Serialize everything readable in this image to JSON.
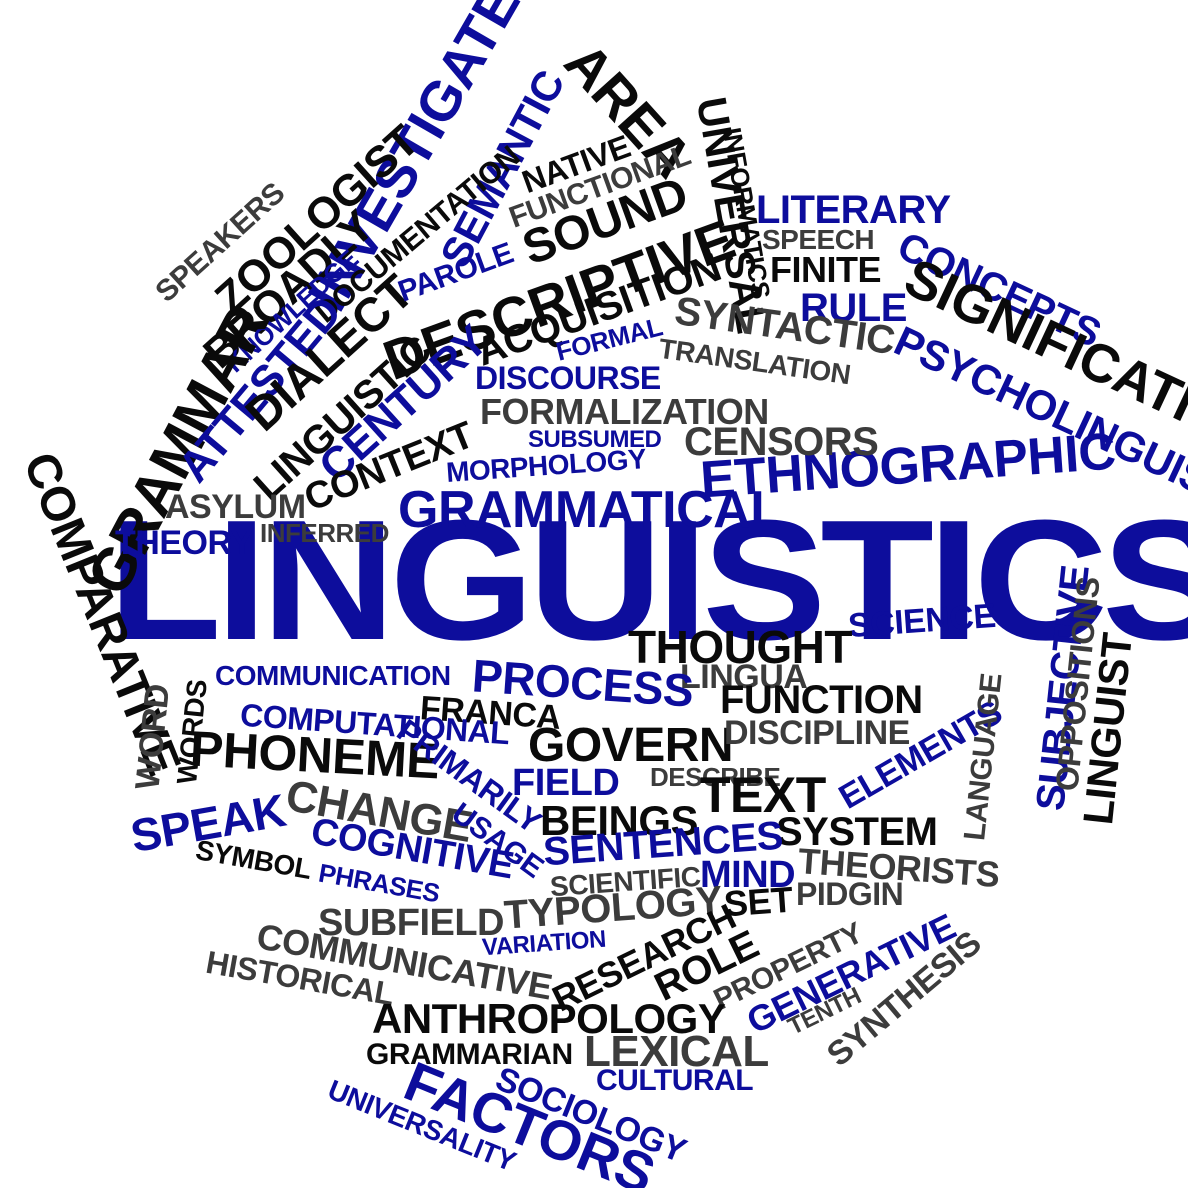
{
  "palette": {
    "black": "#0a0a0a",
    "blue": "#0d0d9c",
    "gray": "#3c3c3c",
    "background": "#ffffff"
  },
  "words": {
    "linguistics": "LINGUISTICS",
    "grammatical": "GRAMMATICAL",
    "ethnographic": "ETHNOGRAPHIC",
    "descriptive": "DESCRIPTIVE",
    "investigate": "INVESTIGATE",
    "semantic": "SEMANTIC",
    "area": "AREA",
    "zoologist": "ZOOLOGIST",
    "speakers": "SPEAKERS",
    "broadly": "BROADLY",
    "knowledge": "KNOWLEDGE",
    "documentation": "DOCUMENTATION",
    "grammar": "GRAMMAR",
    "attested": "ATTESTED",
    "dialect": "DIALECT",
    "linguistic": "LINGUISTIC",
    "century": "CENTURY",
    "parole": "PAROLE",
    "native": "NATIVE",
    "functional": "FUNCTIONAL",
    "sound": "SOUND",
    "acquisition": "ACQUISITION",
    "universal": "UNIVERSAL",
    "informatics": "INFORMATICS",
    "literary": "LITERARY",
    "speech": "SPEECH",
    "finite": "FINITE",
    "concepts": "CONCEPTS",
    "signification": "SIGNIFICATION",
    "rule": "RULE",
    "psycholinguist": "PSYCHOLINGUIST",
    "syntactic": "SYNTACTIC",
    "formal": "FORMAL",
    "translation": "TRANSLATION",
    "discourse": "DISCOURSE",
    "formalization": "FORMALIZATION",
    "subsumed": "SUBSUMED",
    "censors": "CENSORS",
    "context": "CONTEXT",
    "morphology": "MORPHOLOGY",
    "asylum": "ASYLUM",
    "theory": "THEORY",
    "inferred": "INFERRED",
    "comparative": "COMPARATIVE",
    "science": "SCIENCE",
    "thought": "THOUGHT",
    "lingua": "LINGUA",
    "communication": "COMMUNICATION",
    "process": "PROCESS",
    "franca": "FRANCA",
    "function": "FUNCTION",
    "computational": "COMPUTATIONAL",
    "govern": "GOVERN",
    "discipline": "DISCIPLINE",
    "word": "WORD",
    "words": "WORDS",
    "phoneme": "PHONEME",
    "primarily": "PRIMARILY",
    "field": "FIELD",
    "describe": "DESCRIBE",
    "elements": "ELEMENTS",
    "speak": "SPEAK",
    "change": "CHANGE",
    "usage": "USAGE",
    "beings": "BEINGS",
    "text": "TEXT",
    "system": "SYSTEM",
    "cognitive": "COGNITIVE",
    "sentences": "SENTENCES",
    "theorists": "THEORISTS",
    "symbol": "SYMBOL",
    "phrases": "PHRASES",
    "scientific": "SCIENTIFIC",
    "mind": "MIND",
    "set": "SET",
    "pidgin": "PIDGIN",
    "subfield": "SUBFIELD",
    "typology": "TYPOLOGY",
    "variation": "VARIATION",
    "research": "RESEARCH",
    "role": "ROLE",
    "property": "PROPERTY",
    "generative": "GENERATIVE",
    "synthesis": "SYNTHESIS",
    "tenth": "TENTH",
    "communicative": "COMMUNICATIVE",
    "historical": "HISTORICAL",
    "anthropology": "ANTHROPOLOGY",
    "grammarian": "GRAMMARIAN",
    "lexical": "LEXICAL",
    "cultural": "CULTURAL",
    "sociology": "SOCIOLOGY",
    "factors": "FACTORS",
    "universality": "UNIVERSALITY",
    "language": "LANGUAGE",
    "subjective": "SUBJECTIVE",
    "oppositions": "OPPOSITIONS",
    "linguist": "LINGUIST"
  }
}
